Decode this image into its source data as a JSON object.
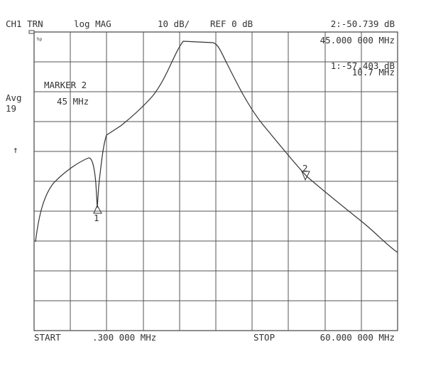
{
  "header": {
    "channel": "CH1 TRN",
    "format": "log MAG",
    "scale": "10 dB/",
    "reference": "REF 0 dB",
    "active_marker": "2:-50.739 dB",
    "active_freq": "45.000 000 MHz"
  },
  "marker_1": {
    "readout": "1:-57.403 dB",
    "freq": "10.7 MHz",
    "label": "1"
  },
  "marker_2": {
    "label": "2"
  },
  "marker_box": {
    "title": "MARKER 2",
    "freq": "45 MHz"
  },
  "averaging": {
    "label": "Avg",
    "count": "19"
  },
  "ref_arrow": "↑",
  "logo": "hp",
  "footer": {
    "start_label": "START",
    "start": ".300 000 MHz",
    "stop_label": "STOP",
    "stop": "60.000 000 MHz"
  }
}
